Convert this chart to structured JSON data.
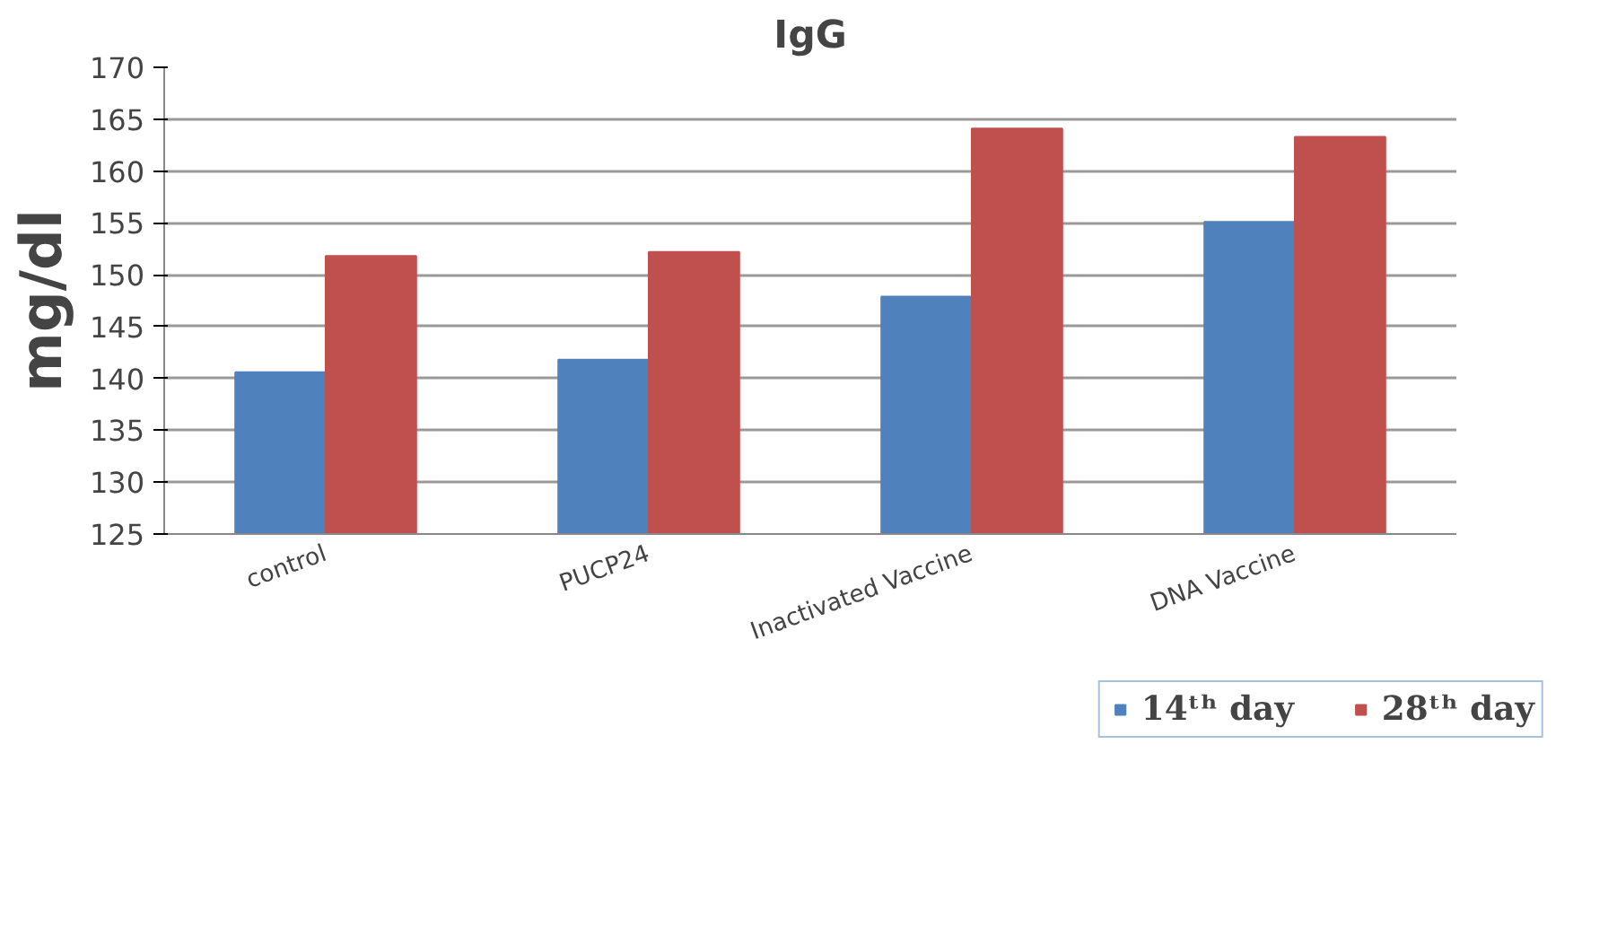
{
  "chart_data": {
    "type": "bar",
    "title": "IgG",
    "ylabel": "mg/dl",
    "categories": [
      "control",
      "PUCP24",
      "Inactivated Vaccine",
      "DNA Vaccine"
    ],
    "series": [
      {
        "name": "14ᵗʰ day",
        "color": "#4f81bd",
        "values": [
          140.6,
          141.8,
          147.9,
          155.1
        ]
      },
      {
        "name": "28ᵗʰ day",
        "color": "#c0504d",
        "values": [
          151.8,
          152.2,
          164.1,
          163.3
        ]
      }
    ],
    "ylim": [
      125,
      170
    ],
    "yticks": [
      125,
      130,
      135,
      140,
      145,
      150,
      155,
      160,
      165,
      170
    ],
    "grid": "y",
    "legend": "bottom"
  }
}
